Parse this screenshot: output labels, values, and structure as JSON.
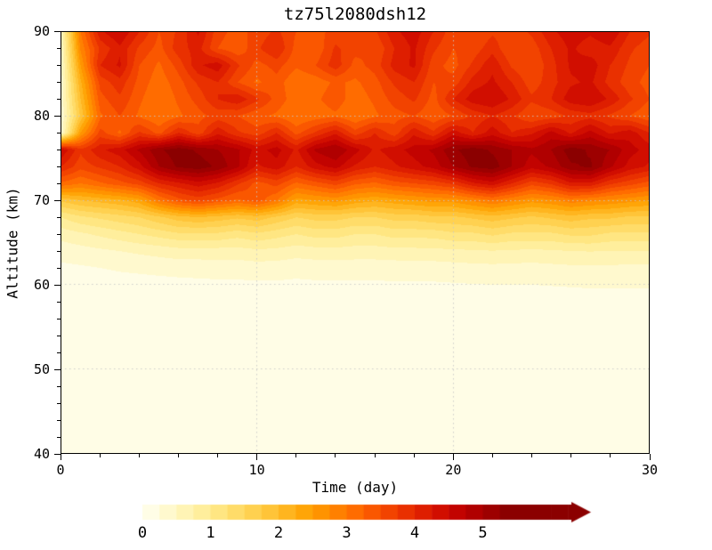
{
  "chart_data": {
    "type": "heatmap",
    "title": "tz75l2080dsh12",
    "xlabel": "Time (day)",
    "ylabel": "Altitude (km)",
    "xlim": [
      0,
      30
    ],
    "ylim": [
      40,
      90
    ],
    "xticks": [
      0,
      10,
      20,
      30
    ],
    "xminor_step": 2,
    "yticks": [
      40,
      50,
      60,
      70,
      80,
      90
    ],
    "yminor_step": 2,
    "grid_x": [
      10,
      20
    ],
    "grid_y": [
      50,
      60,
      70,
      80
    ],
    "grid_color": "#c8c8c8",
    "level_step": 0.25,
    "palette": [
      "#FFFDE6",
      "#FFF9CE",
      "#FFF4B5",
      "#FFEE9C",
      "#FFE682",
      "#FFDC69",
      "#FFD150",
      "#FFC438",
      "#FFB51F",
      "#FFA507",
      "#FF9300",
      "#FF8000",
      "#FF6C00",
      "#FA5700",
      "#F24300",
      "#E93000",
      "#DE1E00",
      "#D10E00",
      "#C20300",
      "#B00000",
      "#9D0000",
      "#8B0000"
    ],
    "x": [
      0,
      1,
      2,
      3,
      4,
      5,
      6,
      7,
      8,
      9,
      10,
      11,
      12,
      13,
      14,
      15,
      16,
      17,
      18,
      19,
      20,
      21,
      22,
      23,
      24,
      25,
      26,
      27,
      28,
      29,
      30
    ],
    "alt": [
      40,
      56,
      58,
      60,
      62,
      64,
      66,
      68,
      70,
      72,
      74,
      76,
      78,
      80,
      82,
      84,
      86,
      88,
      90
    ],
    "values": [
      [
        0.05,
        0.05,
        0.05,
        0.05,
        0.05,
        0.05,
        0.05,
        0.05,
        0.05,
        0.05,
        0.05,
        0.05,
        0.05,
        0.05,
        0.05,
        0.05,
        0.05,
        0.05,
        0.05,
        0.05,
        0.05,
        0.05,
        0.05,
        0.05,
        0.05,
        0.05,
        0.05,
        0.05,
        0.05,
        0.05,
        0.05
      ],
      [
        0.05,
        0.05,
        0.05,
        0.05,
        0.05,
        0.05,
        0.05,
        0.05,
        0.05,
        0.05,
        0.05,
        0.05,
        0.05,
        0.05,
        0.05,
        0.05,
        0.05,
        0.05,
        0.05,
        0.05,
        0.05,
        0.05,
        0.05,
        0.05,
        0.05,
        0.05,
        0.05,
        0.05,
        0.05,
        0.05,
        0.05
      ],
      [
        0.08,
        0.08,
        0.09,
        0.09,
        0.09,
        0.1,
        0.1,
        0.1,
        0.11,
        0.11,
        0.11,
        0.11,
        0.11,
        0.11,
        0.12,
        0.12,
        0.12,
        0.12,
        0.12,
        0.12,
        0.12,
        0.13,
        0.13,
        0.13,
        0.13,
        0.13,
        0.14,
        0.14,
        0.14,
        0.14,
        0.14
      ],
      [
        0.12,
        0.13,
        0.14,
        0.15,
        0.16,
        0.17,
        0.18,
        0.19,
        0.2,
        0.2,
        0.21,
        0.21,
        0.2,
        0.21,
        0.21,
        0.21,
        0.21,
        0.22,
        0.22,
        0.22,
        0.23,
        0.24,
        0.25,
        0.25,
        0.25,
        0.26,
        0.27,
        0.28,
        0.28,
        0.28,
        0.28
      ],
      [
        0.2,
        0.22,
        0.25,
        0.28,
        0.3,
        0.32,
        0.34,
        0.35,
        0.36,
        0.36,
        0.38,
        0.37,
        0.34,
        0.36,
        0.37,
        0.36,
        0.36,
        0.37,
        0.38,
        0.38,
        0.4,
        0.42,
        0.43,
        0.42,
        0.41,
        0.43,
        0.45,
        0.46,
        0.45,
        0.44,
        0.44
      ],
      [
        0.35,
        0.4,
        0.45,
        0.5,
        0.55,
        0.6,
        0.65,
        0.65,
        0.65,
        0.65,
        0.7,
        0.68,
        0.62,
        0.65,
        0.66,
        0.64,
        0.64,
        0.66,
        0.67,
        0.68,
        0.7,
        0.72,
        0.74,
        0.72,
        0.7,
        0.72,
        0.75,
        0.76,
        0.75,
        0.74,
        0.74
      ],
      [
        0.6,
        0.7,
        0.8,
        0.9,
        1.0,
        1.1,
        1.2,
        1.2,
        1.2,
        1.1,
        1.2,
        1.1,
        1.0,
        1.1,
        1.1,
        1.0,
        1.0,
        1.1,
        1.1,
        1.1,
        1.2,
        1.2,
        1.3,
        1.2,
        1.2,
        1.2,
        1.3,
        1.3,
        1.2,
        1.2,
        1.2
      ],
      [
        1.0,
        1.2,
        1.3,
        1.4,
        1.5,
        1.7,
        1.9,
        2.0,
        1.9,
        1.8,
        1.9,
        1.7,
        1.5,
        1.6,
        1.6,
        1.5,
        1.5,
        1.6,
        1.6,
        1.7,
        1.7,
        1.8,
        1.9,
        1.8,
        1.7,
        1.8,
        1.9,
        1.8,
        1.8,
        1.7,
        1.7
      ],
      [
        1.8,
        2.0,
        2.1,
        2.2,
        2.4,
        3.0,
        3.4,
        3.6,
        3.4,
        3.2,
        3.4,
        3.0,
        2.4,
        2.5,
        2.6,
        2.4,
        2.3,
        2.4,
        2.5,
        2.6,
        2.6,
        2.8,
        3.0,
        2.8,
        2.6,
        2.7,
        2.9,
        2.8,
        2.7,
        2.6,
        2.5
      ],
      [
        3.2,
        3.0,
        3.2,
        3.4,
        3.6,
        4.0,
        4.2,
        4.4,
        4.2,
        3.8,
        3.4,
        3.6,
        3.2,
        3.4,
        3.6,
        3.3,
        3.2,
        3.4,
        3.5,
        3.6,
        3.8,
        4.2,
        4.4,
        4.0,
        3.6,
        3.8,
        4.2,
        4.2,
        3.8,
        3.6,
        3.4
      ],
      [
        4.0,
        3.6,
        3.8,
        4.0,
        4.4,
        5.0,
        5.3,
        5.4,
        5.2,
        4.8,
        4.2,
        4.4,
        4.0,
        4.4,
        4.6,
        4.2,
        4.0,
        4.2,
        4.4,
        4.6,
        5.0,
        5.3,
        5.4,
        5.0,
        4.6,
        4.8,
        5.2,
        5.3,
        4.8,
        4.4,
        4.2
      ],
      [
        4.5,
        3.8,
        4.2,
        4.4,
        4.8,
        5.2,
        5.4,
        5.2,
        5.0,
        4.8,
        4.4,
        4.6,
        4.2,
        4.8,
        5.0,
        4.6,
        4.2,
        4.4,
        4.6,
        4.8,
        5.2,
        5.4,
        5.2,
        5.0,
        4.8,
        5.0,
        5.4,
        5.2,
        5.0,
        4.6,
        4.4
      ],
      [
        0.3,
        2.5,
        3.6,
        3.2,
        3.8,
        3.4,
        4.0,
        3.6,
        4.2,
        3.8,
        3.6,
        4.0,
        3.4,
        3.8,
        4.2,
        3.6,
        4.0,
        3.6,
        4.2,
        3.8,
        4.4,
        4.0,
        4.4,
        4.0,
        4.2,
        4.6,
        4.2,
        4.6,
        4.2,
        4.4,
        4.0
      ],
      [
        0.25,
        1.8,
        3.2,
        3.5,
        3.2,
        3.0,
        3.2,
        3.4,
        3.6,
        3.5,
        3.3,
        3.2,
        3.0,
        3.1,
        3.2,
        3.0,
        3.2,
        3.4,
        3.5,
        3.3,
        3.5,
        3.8,
        4.0,
        3.8,
        3.5,
        3.6,
        3.8,
        3.9,
        3.7,
        3.5,
        3.3
      ],
      [
        0.3,
        2.0,
        3.4,
        3.7,
        3.3,
        3.0,
        3.3,
        3.6,
        4.0,
        4.2,
        3.8,
        3.4,
        3.1,
        3.2,
        3.4,
        3.1,
        3.3,
        3.6,
        3.8,
        3.4,
        4.0,
        4.4,
        4.5,
        4.2,
        3.8,
        4.0,
        4.4,
        4.5,
        4.2,
        3.8,
        3.5
      ],
      [
        0.3,
        2.2,
        3.6,
        3.9,
        3.4,
        3.1,
        3.4,
        3.8,
        4.0,
        3.5,
        3.2,
        3.4,
        3.0,
        3.1,
        3.3,
        3.2,
        3.4,
        3.8,
        4.0,
        3.5,
        3.6,
        4.1,
        4.3,
        4.0,
        3.6,
        3.9,
        4.2,
        4.3,
        3.9,
        3.6,
        3.4
      ],
      [
        0.35,
        2.5,
        4.0,
        4.3,
        3.5,
        3.2,
        3.6,
        4.2,
        4.4,
        3.8,
        3.4,
        3.6,
        3.3,
        3.5,
        3.9,
        3.4,
        3.6,
        4.1,
        4.3,
        3.6,
        3.4,
        3.8,
        4.2,
        3.7,
        3.5,
        3.9,
        4.3,
        4.4,
        4.0,
        3.7,
        3.5
      ],
      [
        0.4,
        2.8,
        3.8,
        4.2,
        3.7,
        3.4,
        3.9,
        4.1,
        3.5,
        3.3,
        3.7,
        4.0,
        3.4,
        3.3,
        3.8,
        3.6,
        3.5,
        4.0,
        4.3,
        3.8,
        3.5,
        3.6,
        3.9,
        3.5,
        3.6,
        4.0,
        4.3,
        4.1,
        4.2,
        3.8,
        3.6
      ],
      [
        0.5,
        3.0,
        4.2,
        4.5,
        4.0,
        3.5,
        3.8,
        4.3,
        3.6,
        3.4,
        3.6,
        3.8,
        3.5,
        3.4,
        3.6,
        3.5,
        3.7,
        4.2,
        4.4,
        4.0,
        3.6,
        3.5,
        3.7,
        3.6,
        3.8,
        4.2,
        4.4,
        4.3,
        4.5,
        4.0,
        3.8
      ]
    ],
    "colorbar": {
      "ticks": [
        0,
        1,
        2,
        3,
        4,
        5
      ],
      "vmax": 6.3,
      "arrow": true
    }
  }
}
